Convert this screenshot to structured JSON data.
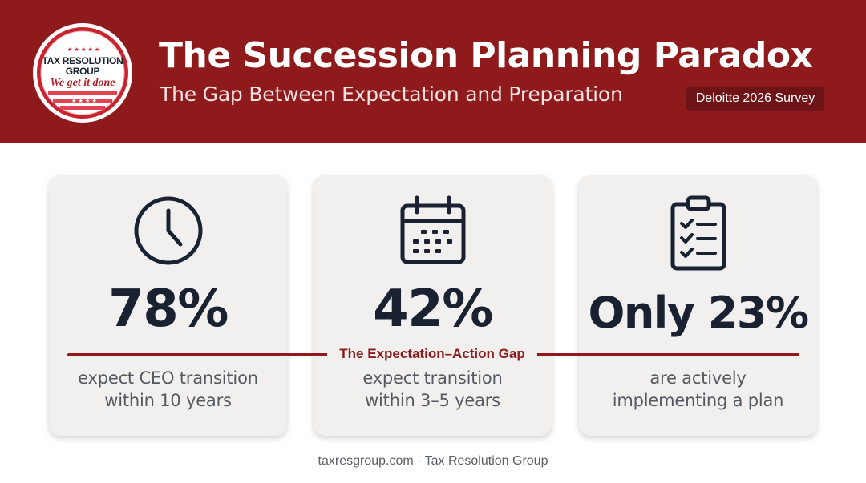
{
  "logo": {
    "name": "TAX RESOLUTION GROUP",
    "line1": "TAX RESOLUTION",
    "line2": "GROUP",
    "tagline": "We get it done",
    "colors": {
      "ring": "#c9212e",
      "navy": "#1b2330"
    }
  },
  "header": {
    "title": "The Succession Planning Paradox",
    "subtitle": "The Gap Between Expectation and Preparation",
    "badge": "Deloitte 2026 Survey",
    "background": "#8e1a1c"
  },
  "cards": [
    {
      "icon": "clock-icon",
      "stat": "78%",
      "desc_line1": "expect CEO transition",
      "desc_line2": "within 10 years"
    },
    {
      "icon": "calendar-icon",
      "stat": "42%",
      "desc_line1": "expect transition",
      "desc_line2": "within 3–5 years"
    },
    {
      "icon": "checklist-clipboard-icon",
      "stat": "Only 23%",
      "desc_line1": "are actively",
      "desc_line2": "implementing a plan"
    }
  ],
  "gap": {
    "label": "The Expectation–Action Gap",
    "color": "#8e1a1c"
  },
  "footer": {
    "text": "taxresgroup.com · Tax Resolution Group"
  },
  "colors": {
    "card_bg": "#f1f0ee",
    "stat_text": "#1a2232",
    "desc_text": "#555a62"
  }
}
